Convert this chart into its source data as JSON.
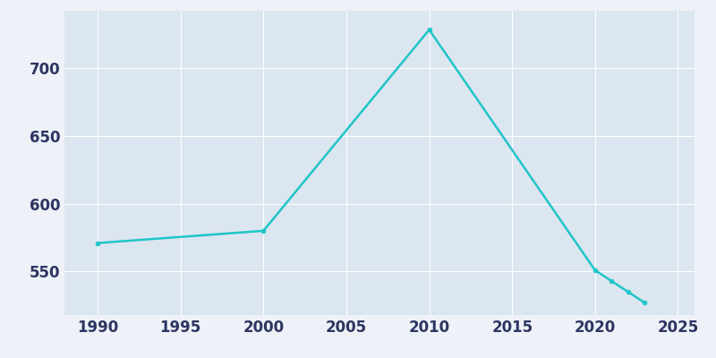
{
  "x": [
    1990,
    2000,
    2010,
    2020,
    2021,
    2022,
    2023
  ],
  "y": [
    571,
    580,
    728,
    551,
    543,
    535,
    527
  ],
  "line_color": "#20c5c8",
  "marker_color": "#20c5c8",
  "fig_bg_color": "#eef2f8",
  "plot_bg_color": "#dce6f0",
  "grid_color": "#ffffff",
  "xlim": [
    1988,
    2026
  ],
  "ylim": [
    518,
    742
  ],
  "xticks": [
    1990,
    1995,
    2000,
    2005,
    2010,
    2015,
    2020,
    2025
  ],
  "yticks": [
    550,
    600,
    650,
    700
  ],
  "tick_color": "#2d3561",
  "tick_fontsize": 12,
  "linewidth": 1.8,
  "markersize": 3.5
}
